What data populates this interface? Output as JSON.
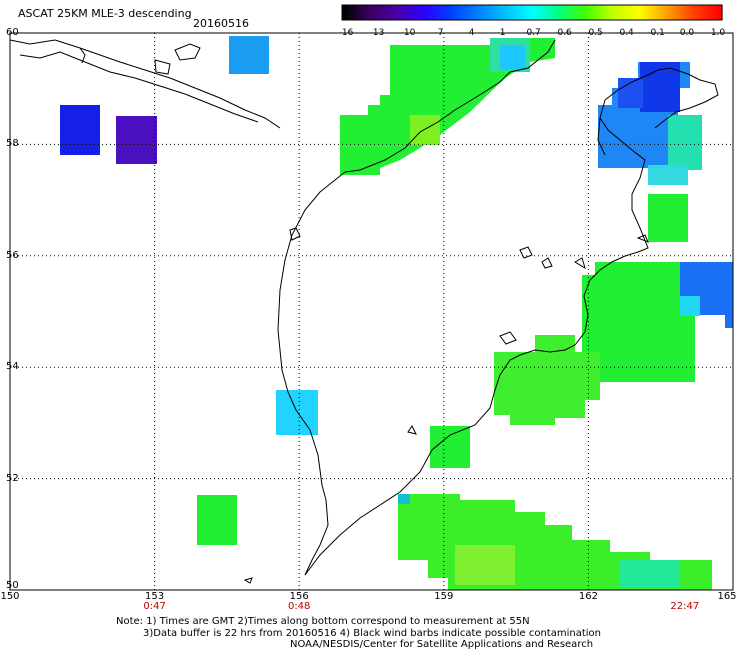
{
  "header": {
    "title": "ASCAT 25KM MLE-3 descending",
    "date": "20160516"
  },
  "colorbar": {
    "labels": [
      "-16",
      "-13",
      "-10",
      "-7",
      "-4",
      "-1",
      "-0.7",
      "-0.6",
      "-0.5",
      "-0.4",
      "-0.1",
      "0.0",
      "1.0"
    ],
    "colors": [
      "#000000",
      "#3a0060",
      "#4a00a8",
      "#2a00ff",
      "#0040ff",
      "#0080ff",
      "#00c0ff",
      "#00ffff",
      "#00ff80",
      "#40ff00",
      "#c0ff00",
      "#ffff00",
      "#ffa000",
      "#ff4000",
      "#ff0000"
    ]
  },
  "axes": {
    "lat_labels": [
      "60",
      "58",
      "56",
      "54",
      "52",
      "50"
    ],
    "lat_values": [
      60,
      58,
      56,
      54,
      52,
      50
    ],
    "lon_labels": [
      "150",
      "153",
      "156",
      "159",
      "162",
      "165"
    ],
    "lon_values": [
      150,
      153,
      156,
      159,
      162,
      165
    ],
    "lon_range": [
      150,
      165
    ],
    "lat_range": [
      50,
      60
    ],
    "grid": true
  },
  "pass_times": [
    {
      "label": "0:47",
      "lon": 153
    },
    {
      "label": "0:48",
      "lon": 156
    },
    {
      "label": "22:47",
      "lon": 164
    }
  ],
  "notes": {
    "line1": "Note: 1) Times are GMT 2)Times along bottom correspond to measurement at 55N",
    "line2": "3)Data buffer is 22 hrs from 20160516 4) Black wind barbs indicate possible contamination",
    "line3": "NOAA/NESDIS/Center for Satellite Applications and Research"
  }
}
